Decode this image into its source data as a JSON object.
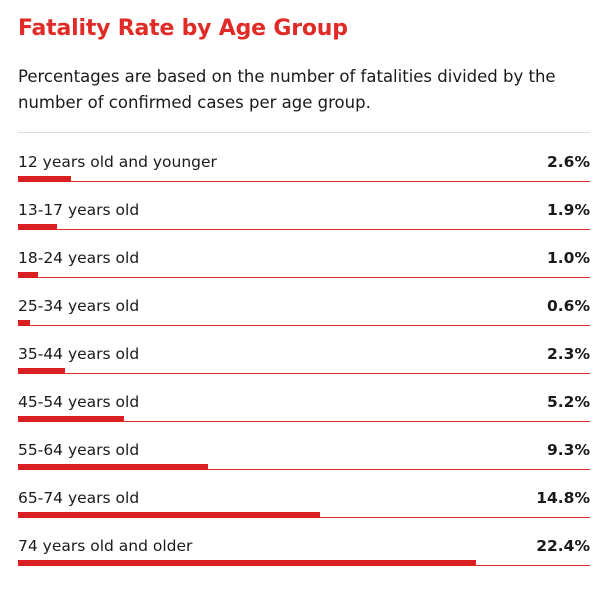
{
  "title": "Fatality Rate by Age Group",
  "subtitle": "Percentages are based on the number of fatalities divided by the number of confirmed cases per age group.",
  "colors": {
    "accent": "#e02b27",
    "bar": "#d91f1f"
  },
  "chart_data": {
    "type": "bar",
    "orientation": "horizontal",
    "title": "Fatality Rate by Age Group",
    "categories": [
      "12 years old and younger",
      "13-17 years old",
      "18-24 years old",
      "25-34 years old",
      "35-44 years old",
      "45-54 years old",
      "55-64 years old",
      "65-74 years old",
      "74 years old and older"
    ],
    "values": [
      2.6,
      1.9,
      1.0,
      0.6,
      2.3,
      5.2,
      9.3,
      14.8,
      22.4
    ],
    "value_labels": [
      "2.6%",
      "1.9%",
      "1.0%",
      "0.6%",
      "2.3%",
      "5.2%",
      "9.3%",
      "14.8%",
      "22.4%"
    ],
    "unit": "%",
    "xlim": [
      0,
      28
    ]
  }
}
